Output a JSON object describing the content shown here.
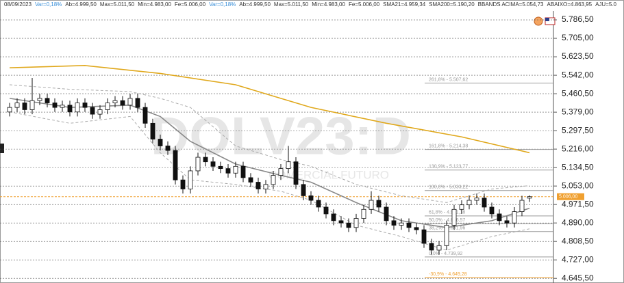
{
  "chart_data": {
    "type": "candlestick",
    "header": [
      {
        "text": "08/09/2023",
        "color": "#333333"
      },
      {
        "text": "Var=0,18%",
        "color": "#3a8fd8"
      },
      {
        "text": "Ab=4.999,50",
        "color": "#333333"
      },
      {
        "text": "Max=5.011,50",
        "color": "#333333"
      },
      {
        "text": "Min=4.983,00",
        "color": "#333333"
      },
      {
        "text": "Fe=5.006,00",
        "color": "#333333"
      },
      {
        "text": "Var=0,18%",
        "color": "#3a8fd8"
      },
      {
        "text": "Ab=4.999,50",
        "color": "#333333"
      },
      {
        "text": "Max=5.011,50",
        "color": "#333333"
      },
      {
        "text": "Min=4.983,00",
        "color": "#333333"
      },
      {
        "text": "Fe=5.006,00",
        "color": "#333333"
      },
      {
        "text": "SMA21=4.959,34",
        "color": "#333333"
      },
      {
        "text": "SMA200=5.190,20",
        "color": "#333333"
      },
      {
        "text": "BBANDS ACIMA=5.054,73",
        "color": "#333333"
      },
      {
        "text": "ABAIXO=4.863,95",
        "color": "#333333"
      },
      {
        "text": "AJU=5.0",
        "color": "#333333"
      }
    ],
    "watermark": "DOLV23:D",
    "watermark_sub": "COMERCIAL FUTURO",
    "ylim": [
      4625,
      5850
    ],
    "yticks": [
      {
        "value": 5786.5,
        "label": "5.786,50"
      },
      {
        "value": 5705,
        "label": "5.705,00"
      },
      {
        "value": 5623.5,
        "label": "5.623,50"
      },
      {
        "value": 5542,
        "label": "5.542,00"
      },
      {
        "value": 5460.5,
        "label": "5.460,50"
      },
      {
        "value": 5379,
        "label": "5.379,00"
      },
      {
        "value": 5297.5,
        "label": "5.297,50"
      },
      {
        "value": 5216,
        "label": "5.216,00"
      },
      {
        "value": 5134.5,
        "label": "5.134,50"
      },
      {
        "value": 5053,
        "label": "5.053,00"
      },
      {
        "value": 4971.5,
        "label": "4.971,50"
      },
      {
        "value": 4890,
        "label": "4.890,00"
      },
      {
        "value": 4808.5,
        "label": "4.808,50"
      },
      {
        "value": 4727,
        "label": "4.727,00"
      },
      {
        "value": 4645.5,
        "label": "4.645,50"
      }
    ],
    "grid": true,
    "up_color": "#ffffff",
    "down_color": "#111111",
    "open": [
      5380,
      5400,
      5420,
      5390,
      5430,
      5440,
      5420,
      5400,
      5410,
      5380,
      5420,
      5400,
      5370,
      5390,
      5420,
      5430,
      5410,
      5440,
      5400,
      5330,
      5260,
      5230,
      5210,
      5080,
      5040,
      5120,
      5180,
      5160,
      5140,
      5130,
      5110,
      5140,
      5090,
      5070,
      5040,
      5060,
      5100,
      5130,
      5160,
      5060,
      5010,
      4990,
      4960,
      4930,
      4900,
      4890,
      4870,
      4910,
      4950,
      4990,
      4960,
      4900,
      4880,
      4890,
      4870,
      4860,
      4800,
      4770,
      4790,
      4880,
      4950,
      4970,
      4990,
      5000,
      4960,
      4930,
      4900,
      4890,
      4940,
      4999.5
    ],
    "high": [
      5420,
      5440,
      5440,
      5530,
      5460,
      5460,
      5440,
      5430,
      5430,
      5440,
      5440,
      5420,
      5410,
      5440,
      5450,
      5450,
      5460,
      5460,
      5420,
      5350,
      5280,
      5250,
      5230,
      5100,
      5140,
      5200,
      5200,
      5180,
      5160,
      5150,
      5160,
      5160,
      5110,
      5090,
      5080,
      5120,
      5150,
      5230,
      5180,
      5080,
      5030,
      5010,
      4980,
      4950,
      4920,
      4910,
      4930,
      4970,
      5030,
      5010,
      4980,
      4920,
      4910,
      4910,
      4890,
      4880,
      4820,
      4810,
      4900,
      4970,
      4990,
      5010,
      5020,
      5020,
      4980,
      4950,
      4920,
      4960,
      5010,
      5011.5
    ],
    "low": [
      5360,
      5380,
      5370,
      5370,
      5410,
      5400,
      5380,
      5380,
      5360,
      5360,
      5380,
      5350,
      5350,
      5370,
      5400,
      5390,
      5390,
      5380,
      5310,
      5240,
      5210,
      5190,
      5060,
      5020,
      5020,
      5100,
      5140,
      5120,
      5110,
      5090,
      5090,
      5070,
      5050,
      5020,
      5020,
      5040,
      5080,
      5110,
      5040,
      4990,
      4970,
      4940,
      4910,
      4880,
      4870,
      4850,
      4850,
      4890,
      4930,
      4940,
      4880,
      4860,
      4860,
      4850,
      4840,
      4780,
      4750,
      4750,
      4770,
      4860,
      4930,
      4950,
      4970,
      4940,
      4910,
      4880,
      4870,
      4870,
      4920,
      4983
    ],
    "close": [
      5400,
      5420,
      5390,
      5430,
      5440,
      5420,
      5400,
      5410,
      5380,
      5420,
      5400,
      5370,
      5390,
      5420,
      5430,
      5410,
      5440,
      5400,
      5330,
      5260,
      5230,
      5210,
      5080,
      5040,
      5120,
      5180,
      5160,
      5140,
      5130,
      5110,
      5140,
      5090,
      5070,
      5040,
      5060,
      5100,
      5130,
      5160,
      5060,
      5010,
      4990,
      4960,
      4930,
      4900,
      4890,
      4870,
      4910,
      4950,
      4990,
      4960,
      4900,
      4880,
      4890,
      4870,
      4860,
      4800,
      4770,
      4790,
      4880,
      4950,
      4970,
      4990,
      5000,
      4960,
      4930,
      4900,
      4890,
      4940,
      4990,
      5006
    ],
    "indicators": [
      {
        "color": "#e0a81c",
        "dash": false,
        "x": [
          0,
          10,
          20,
          30,
          40,
          50,
          60,
          69
        ],
        "values": [
          5575,
          5585,
          5550,
          5500,
          5400,
          5330,
          5270,
          5200
        ]
      },
      {
        "color": "#888888",
        "dash": false,
        "x": [
          0,
          8,
          16,
          20,
          24,
          30,
          36,
          40,
          46,
          52,
          58,
          64,
          69
        ],
        "values": [
          5440,
          5400,
          5410,
          5360,
          5250,
          5150,
          5100,
          5070,
          4980,
          4900,
          4870,
          4900,
          4955
        ]
      },
      {
        "color": "#aaaaaa",
        "dash": true,
        "x": [
          0,
          8,
          16,
          20,
          24,
          30,
          36,
          40,
          46,
          52,
          58,
          64,
          69
        ],
        "values": [
          5500,
          5480,
          5470,
          5440,
          5400,
          5230,
          5170,
          5140,
          5060,
          5010,
          4980,
          5040,
          5054.73
        ]
      },
      {
        "color": "#aaaaaa",
        "dash": true,
        "x": [
          0,
          8,
          16,
          20,
          24,
          30,
          36,
          40,
          46,
          52,
          58,
          64,
          69
        ],
        "values": [
          5380,
          5330,
          5360,
          5200,
          5080,
          5060,
          5030,
          4990,
          4880,
          4830,
          4770,
          4830,
          4864
        ]
      }
    ],
    "fibonacci": [
      {
        "value": 5507.62,
        "label": "261,8% - 5.507,62",
        "color": "#999999"
      },
      {
        "value": 5214.38,
        "label": "161,8% - 5.214,38",
        "color": "#999999"
      },
      {
        "value": 5123.77,
        "label": "130,9% - 5.123,77",
        "color": "#999999"
      },
      {
        "value": 5033.22,
        "label": "100,0% - 5.033,22",
        "color": "#999999"
      },
      {
        "value": 4921.18,
        "label": "61,8% - 4.921,18",
        "color": "#999999"
      },
      {
        "value": 4886.57,
        "label": "50,0% - 4.886,57",
        "color": "#999999"
      },
      {
        "value": 4851.96,
        "label": "38,2% - 4.851,96",
        "color": "#999999"
      },
      {
        "value": 4739.92,
        "label": "0,0% - 4.739,92",
        "color": "#999999"
      },
      {
        "value": 4649.28,
        "label": "-30,9% - 4.649,28",
        "color": "#f0a030"
      }
    ],
    "last_price": {
      "value": 5006,
      "label": "5.006,00",
      "color": "#f0a030"
    }
  }
}
